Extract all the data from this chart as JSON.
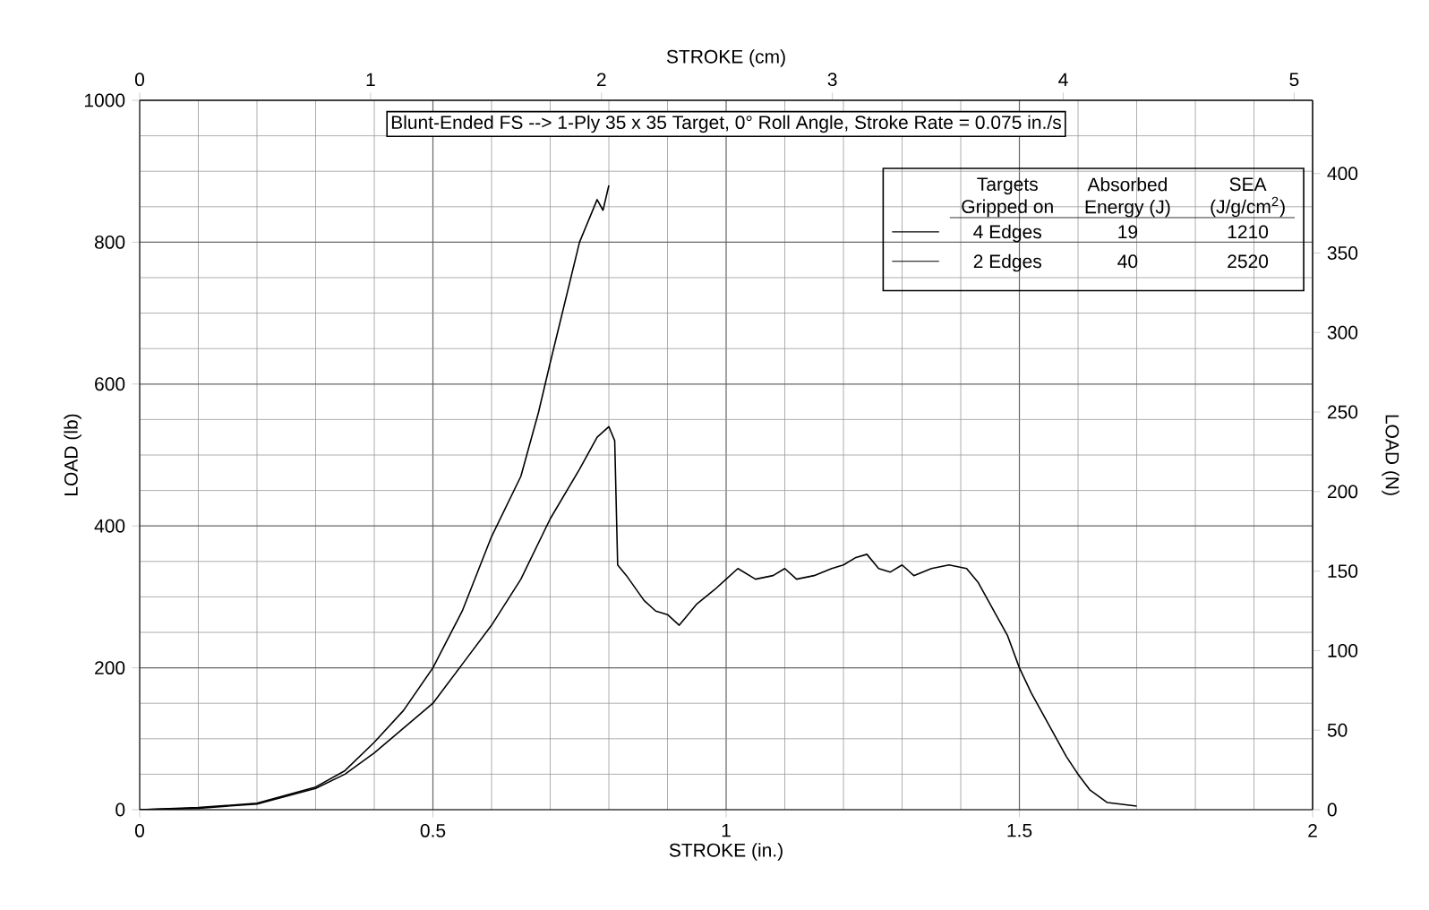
{
  "chart_data": {
    "type": "line",
    "title": "Blunt-Ended FS --> 1-Ply 35 x 35 Target, 0° Roll Angle, Stroke Rate = 0.075 in./s",
    "xlabel": "STROKE (in.)",
    "ylabel": "LOAD (lb)",
    "y2label": "LOAD (N)",
    "x2label": "STROKE (cm)",
    "xlim": [
      0,
      2
    ],
    "xticks": [
      0,
      0.5,
      1,
      1.5,
      2
    ],
    "ylim": [
      0,
      1000
    ],
    "yticks": [
      0,
      200,
      400,
      600,
      800,
      1000
    ],
    "y2lim": [
      0,
      446
    ],
    "y2ticks": [
      0,
      50,
      100,
      150,
      200,
      250,
      300,
      350,
      400
    ],
    "x2lim": [
      0,
      5.08
    ],
    "x2ticks": [
      0,
      1,
      2,
      3,
      4,
      5
    ],
    "grid": true,
    "legend": "top right",
    "line_style": "solid",
    "marker": "none",
    "legend_title": "Targets Gripped on",
    "annotations": [
      "Absorbed Energy (J)",
      "SEA (J/g/cm$^{2}$)",
      "19",
      "1210",
      "40",
      "2520"
    ],
    "series": [
      {
        "name": "4 Edges",
        "color": "#000000",
        "x": [
          0,
          0.1,
          0.2,
          0.3,
          0.35,
          0.4,
          0.45,
          0.5,
          0.55,
          0.6,
          0.65,
          0.68,
          0.7,
          0.75,
          0.78,
          0.79,
          0.8
        ],
        "values": [
          0,
          3,
          9,
          32,
          55,
          95,
          140,
          200,
          280,
          385,
          470,
          560,
          630,
          800,
          860,
          845,
          880
        ]
      },
      {
        "name": "2 Edges",
        "color": "#000000",
        "x": [
          0,
          0.1,
          0.2,
          0.3,
          0.35,
          0.4,
          0.45,
          0.5,
          0.55,
          0.6,
          0.65,
          0.7,
          0.75,
          0.78,
          0.8,
          0.81,
          0.815,
          0.83,
          0.86,
          0.88,
          0.9,
          0.92,
          0.95,
          0.98,
          1.0,
          1.02,
          1.05,
          1.08,
          1.1,
          1.12,
          1.15,
          1.18,
          1.2,
          1.22,
          1.24,
          1.26,
          1.28,
          1.3,
          1.32,
          1.35,
          1.38,
          1.41,
          1.43,
          1.45,
          1.48,
          1.5,
          1.52,
          1.55,
          1.58,
          1.6,
          1.62,
          1.65,
          1.7
        ],
        "values": [
          0,
          2,
          8,
          30,
          50,
          80,
          115,
          150,
          205,
          260,
          325,
          410,
          480,
          525,
          540,
          520,
          345,
          330,
          295,
          280,
          275,
          260,
          290,
          310,
          325,
          340,
          325,
          330,
          340,
          325,
          330,
          340,
          345,
          355,
          360,
          340,
          335,
          345,
          330,
          340,
          345,
          340,
          320,
          290,
          245,
          200,
          165,
          120,
          75,
          50,
          28,
          10,
          5
        ]
      }
    ]
  }
}
